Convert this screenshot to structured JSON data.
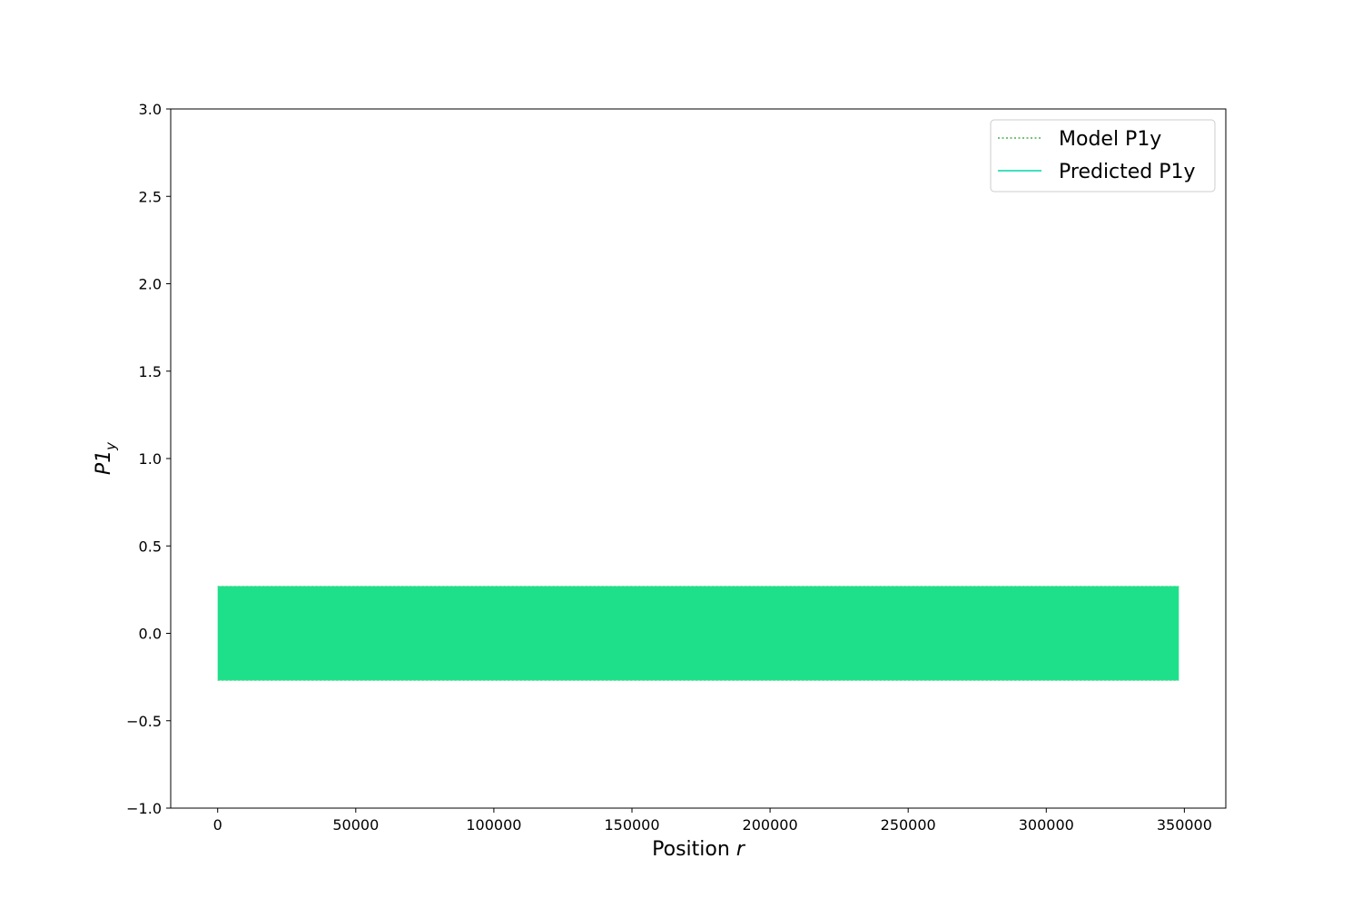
{
  "chart_data": {
    "type": "line",
    "xlabel": "Position",
    "xlabel_var": "r",
    "ylabel": "P1",
    "ylabel_sub": "y",
    "xlim": [
      -17000,
      365000
    ],
    "ylim": [
      -1.0,
      3.0
    ],
    "xticks": [
      0,
      50000,
      100000,
      150000,
      200000,
      250000,
      300000,
      350000
    ],
    "yticks": [
      -1.0,
      -0.5,
      0.0,
      0.5,
      1.0,
      1.5,
      2.0,
      2.5,
      3.0
    ],
    "ytick_labels": [
      "−1.0",
      "−0.5",
      "0.0",
      "0.5",
      "1.0",
      "1.5",
      "2.0",
      "2.5",
      "3.0"
    ],
    "legend_position": "upper right",
    "grid": false,
    "series": [
      {
        "name": "Model P1y",
        "style": "dotted",
        "color": "#4caf50",
        "description": "rapid oscillation, amplitude approx 0.27, overlapped by prediction",
        "x_range": [
          0,
          348000
        ],
        "amplitude": 0.27
      },
      {
        "name": "Predicted P1y",
        "style": "solid",
        "color": "#40e0c0",
        "x_range": [
          0,
          348000
        ],
        "amplitude": 0.27
      }
    ],
    "band_fill_color": "#1fe08a"
  }
}
